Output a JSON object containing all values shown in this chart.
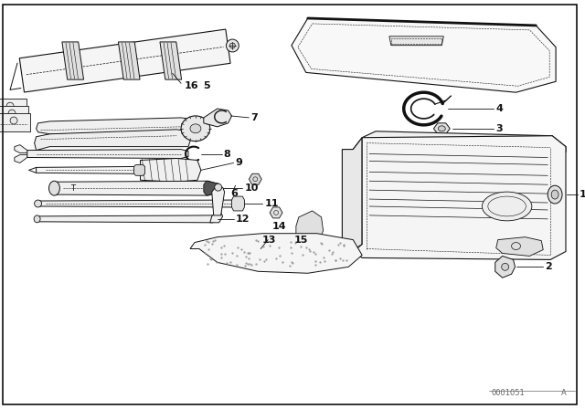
{
  "bg_color": "#ffffff",
  "line_color": "#111111",
  "fig_width": 6.4,
  "fig_height": 4.48,
  "dpi": 100,
  "watermark": "0001051"
}
